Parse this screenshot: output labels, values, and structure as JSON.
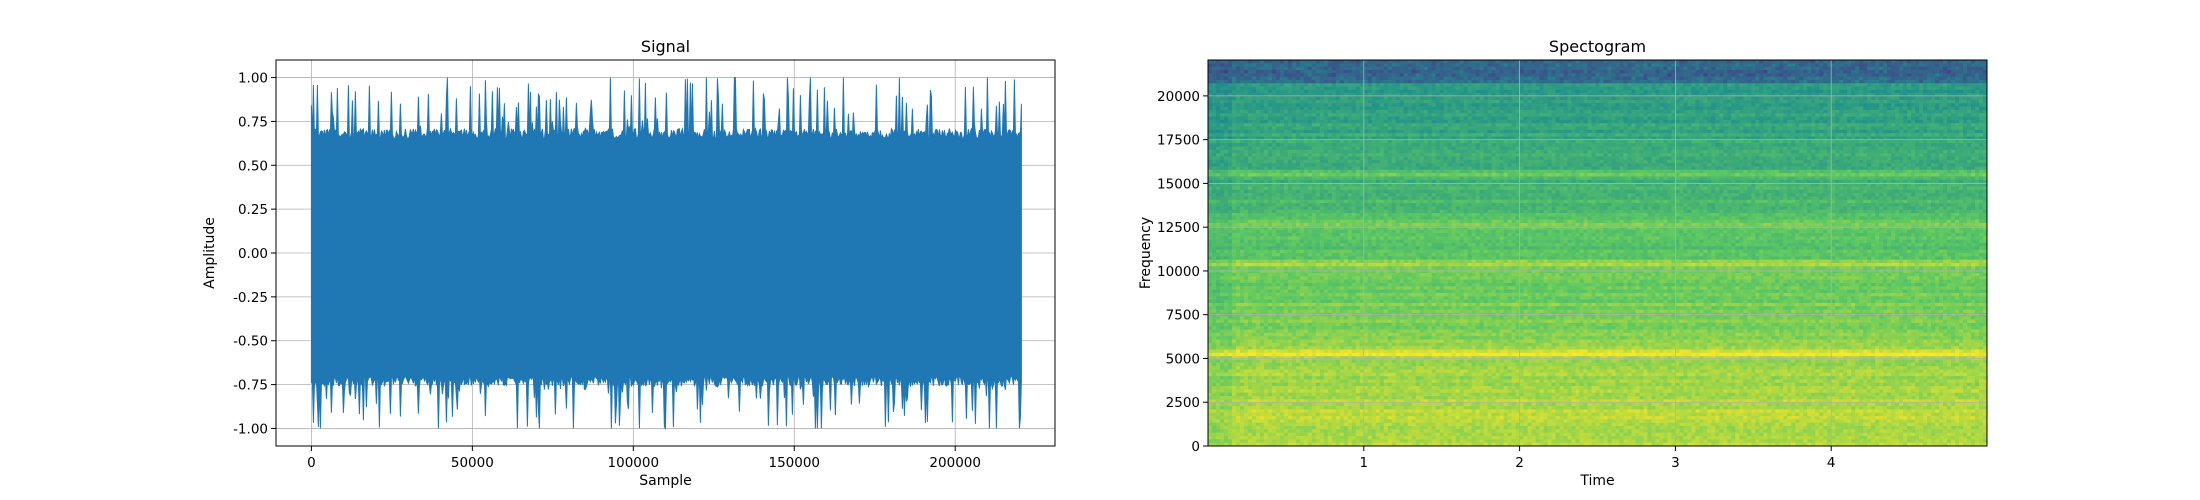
{
  "chart_data": [
    {
      "type": "line",
      "title": "Signal",
      "xlabel": "Sample",
      "ylabel": "Amplitude",
      "xlim": [
        -11000,
        231000
      ],
      "ylim": [
        -1.1,
        1.1
      ],
      "x_ticks": [
        "0",
        "50000",
        "100000",
        "150000",
        "200000"
      ],
      "x_tick_values": [
        0,
        50000,
        100000,
        150000,
        200000
      ],
      "y_ticks": [
        "1.00",
        "0.75",
        "0.50",
        "0.25",
        "0.00",
        "-0.25",
        "-0.50",
        "-0.75",
        "-1.00"
      ],
      "y_tick_values": [
        1.0,
        0.75,
        0.5,
        0.25,
        0.0,
        -0.25,
        -0.5,
        -0.75,
        -1.0
      ],
      "grid": true,
      "series": [
        {
          "color": "#1f77b4",
          "x_range": [
            0,
            220500
          ],
          "envelope_max": 1.0,
          "envelope_min": -1.0,
          "typical_max": 0.65,
          "typical_min": -0.7
        }
      ]
    },
    {
      "type": "heatmap",
      "title": "Spectogram",
      "xlabel": "Time",
      "ylabel": "Frequency",
      "xlim": [
        0,
        5
      ],
      "ylim": [
        0,
        22050
      ],
      "x_ticks": [
        "1",
        "2",
        "3",
        "4"
      ],
      "x_tick_values": [
        1,
        2,
        3,
        4
      ],
      "y_ticks": [
        "20000",
        "17500",
        "15000",
        "12500",
        "10000",
        "7500",
        "5000",
        "2500",
        "0"
      ],
      "y_tick_values": [
        20000,
        17500,
        15000,
        12500,
        10000,
        7500,
        5000,
        2500,
        0
      ],
      "grid": true,
      "colormap": "viridis",
      "bright_bands_hz": [
        5300,
        10400,
        12700,
        15500
      ]
    }
  ]
}
